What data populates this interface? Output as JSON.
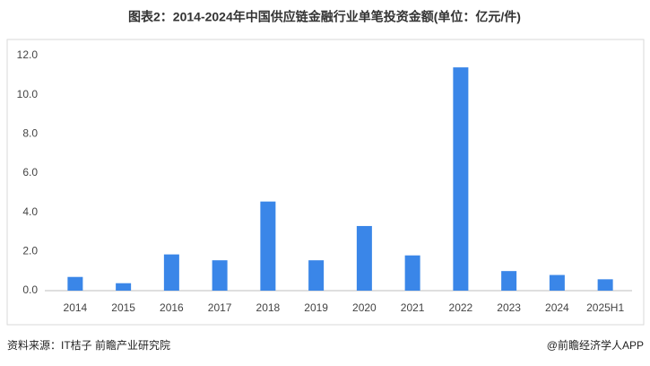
{
  "chart_data": {
    "type": "bar",
    "title": "图表2：2014-2024年中国供应链金融行业单笔投资金额(单位：亿元/件)",
    "categories": [
      "2014",
      "2015",
      "2016",
      "2017",
      "2018",
      "2019",
      "2020",
      "2021",
      "2022",
      "2023",
      "2024",
      "2025H1"
    ],
    "values": [
      0.7,
      0.38,
      1.85,
      1.55,
      4.55,
      1.55,
      3.3,
      1.8,
      11.4,
      1.0,
      0.8,
      0.58
    ],
    "color": "#3a86e8",
    "ylim": [
      0,
      12
    ],
    "yticks": [
      {
        "value": 0,
        "label": "0.0"
      },
      {
        "value": 2,
        "label": "2.0"
      },
      {
        "value": 4,
        "label": "4.0"
      },
      {
        "value": 6,
        "label": "6.0"
      },
      {
        "value": 8,
        "label": "8.0"
      },
      {
        "value": 10,
        "label": "10.0"
      },
      {
        "value": 12,
        "label": "12.0"
      }
    ],
    "grid": false,
    "source": "资料来源：IT桔子 前瞻产业研究院",
    "credit": "@前瞻经济学人APP"
  }
}
